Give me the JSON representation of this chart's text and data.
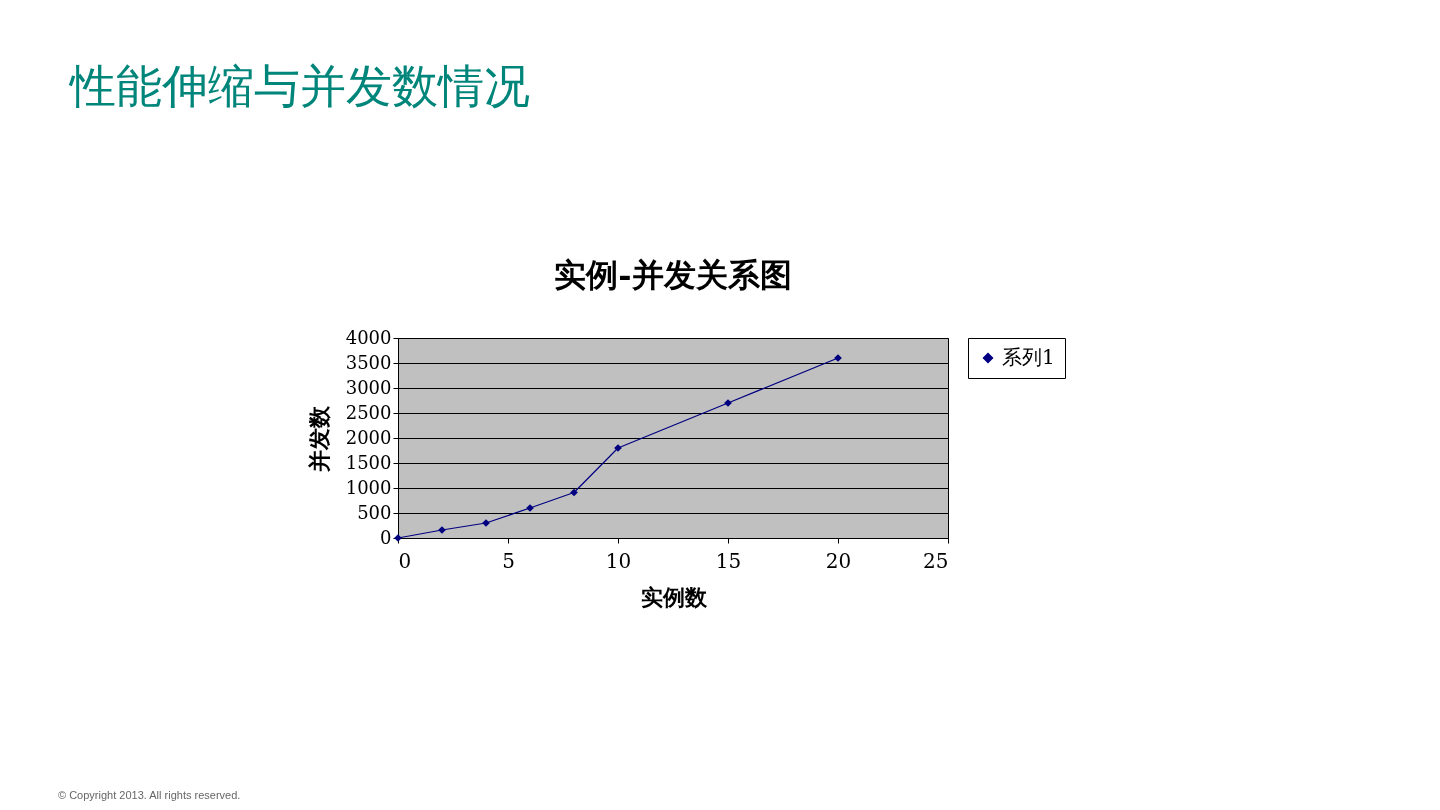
{
  "chart_data": {
    "type": "line",
    "title": "性能伸缩与并发数情况",
    "subtitle": "实例-并发关系图",
    "xlabel": "实例数",
    "ylabel": "并发数",
    "x": [
      0,
      2,
      4,
      6,
      8,
      10,
      15,
      20
    ],
    "series": [
      {
        "name": "系列1",
        "color": "#000080",
        "values": [
          0,
          160,
          300,
          600,
          910,
          1800,
          2700,
          3600
        ]
      }
    ],
    "xlim": [
      0,
      25
    ],
    "xticks": [
      0,
      5,
      10,
      15,
      20,
      25
    ],
    "ylim": [
      0,
      4000
    ],
    "yticks": [
      0,
      500,
      1000,
      1500,
      2000,
      2500,
      3000,
      3500,
      4000
    ],
    "grid": "y",
    "legend": "right",
    "marker": "diamond",
    "line_style": "solid",
    "annotations": [
      "© Copyright 2013. All rights reserved."
    ]
  }
}
